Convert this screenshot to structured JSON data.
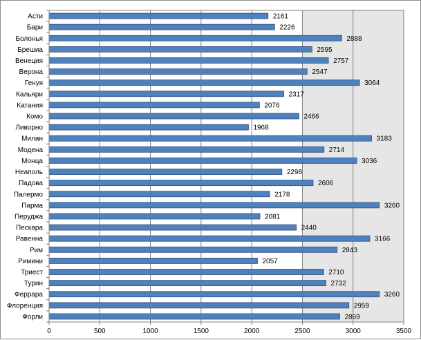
{
  "chart_data": {
    "type": "bar",
    "orientation": "horizontal",
    "title": "",
    "xlabel": "",
    "ylabel": "",
    "categories": [
      "Асти",
      "Бари",
      "Болонья",
      "Брешиа",
      "Венеция",
      "Верона",
      "Генуя",
      "Кальяри",
      "Катания",
      "Комо",
      "Ливорно",
      "Милан",
      "Модена",
      "Монца",
      "Неаполь",
      "Падова",
      "Палермо",
      "Парма",
      "Перуджа",
      "Пескара",
      "Равенна",
      "Рим",
      "Римини",
      "Триест",
      "Турин",
      "Феррара",
      "Флоренция",
      "Форли"
    ],
    "values": [
      2161,
      2226,
      2888,
      2595,
      2757,
      2547,
      3064,
      2317,
      2076,
      2466,
      1968,
      3183,
      2714,
      3036,
      2298,
      2606,
      2178,
      3260,
      2081,
      2440,
      3166,
      2843,
      2057,
      2710,
      2732,
      3260,
      2959,
      2869
    ],
    "value_labels": [
      "2161",
      "2226",
      "2888",
      "2595",
      "2757",
      "2547",
      "3064",
      "2317",
      "2076",
      "2466",
      "1968",
      "3183",
      "2714",
      "3036",
      "2298",
      "2606",
      "2178",
      "3260",
      "2081",
      "2440",
      "3166",
      "2843",
      "2057",
      "2710",
      "2732",
      "3260",
      "2959",
      "2869"
    ],
    "xlim": [
      0,
      3500
    ],
    "x_ticks": [
      0,
      500,
      1000,
      1500,
      2000,
      2500,
      3000,
      3500
    ],
    "x_tick_labels": [
      "0",
      "500",
      "1000",
      "1500",
      "2000",
      "2500",
      "3000",
      "3500"
    ],
    "grid": true,
    "shaded_band": [
      2500,
      3500
    ],
    "colors": {
      "bar_fill": "#4f81bd",
      "bar_stroke": "#2f4f7f",
      "band_fill": "#e6e6e6",
      "grid": "#808080",
      "axis": "#808080"
    }
  }
}
